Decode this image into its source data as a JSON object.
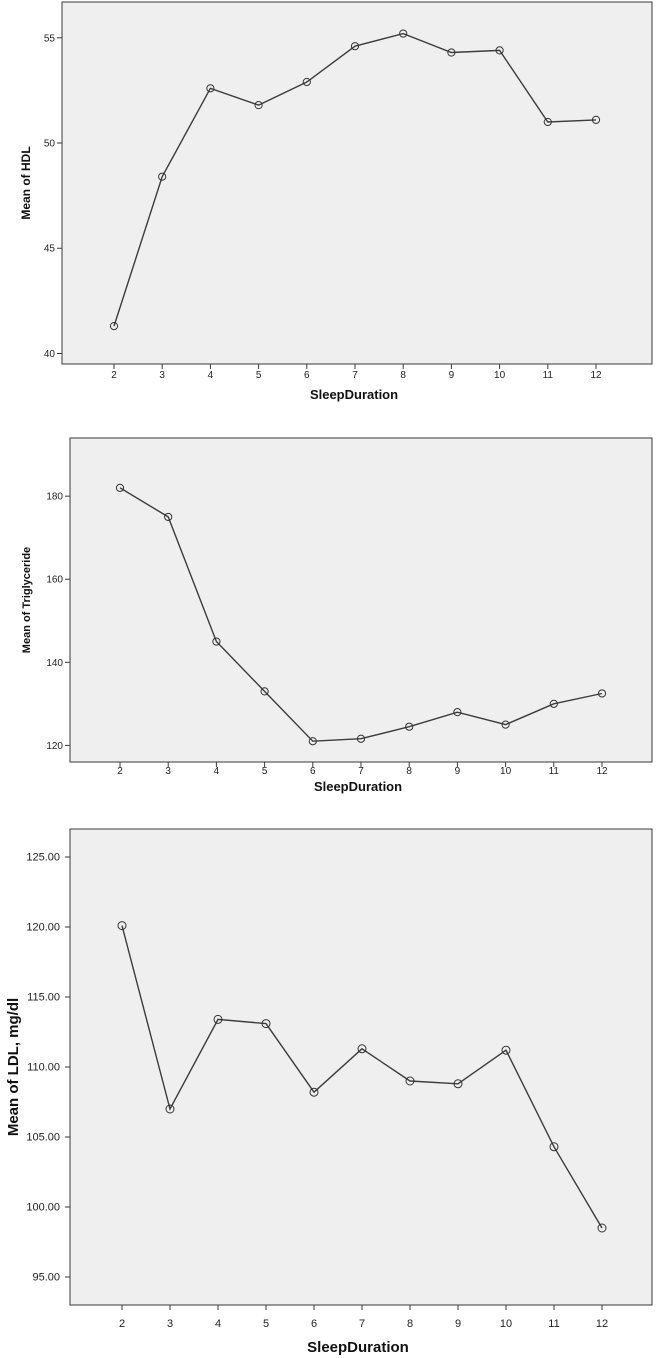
{
  "chart_data": [
    {
      "type": "line",
      "xlabel": "SleepDuration",
      "ylabel": "Mean of HDL",
      "x": [
        2,
        3,
        4,
        5,
        6,
        7,
        8,
        9,
        10,
        11,
        12
      ],
      "yticks": [
        "40",
        "45",
        "50",
        "55"
      ],
      "ylim": [
        39.5,
        56.7
      ],
      "series": [
        {
          "values": [
            41.3,
            48.4,
            52.6,
            51.8,
            52.9,
            54.6,
            55.2,
            54.3,
            54.4,
            51.0,
            51.1
          ]
        }
      ],
      "grid": false,
      "marker": "open-circle"
    },
    {
      "type": "line",
      "xlabel": "SleepDuration",
      "ylabel": "Mean of Triglyceride",
      "x": [
        2,
        3,
        4,
        5,
        6,
        7,
        8,
        9,
        10,
        11,
        12
      ],
      "yticks": [
        "120",
        "140",
        "160",
        "180"
      ],
      "ylim": [
        116,
        194
      ],
      "series": [
        {
          "values": [
            182,
            175,
            145,
            133,
            121,
            121.6,
            124.5,
            128,
            125,
            130,
            132.5
          ]
        }
      ],
      "grid": false,
      "marker": "open-circle"
    },
    {
      "type": "line",
      "xlabel": "SleepDuration",
      "ylabel": "Mean of LDL, mg/dl",
      "x": [
        2,
        3,
        4,
        5,
        6,
        7,
        8,
        9,
        10,
        11,
        12
      ],
      "yticks": [
        "95.00",
        "100.00",
        "105.00",
        "110.00",
        "115.00",
        "120.00",
        "125.00"
      ],
      "ylim": [
        93,
        127
      ],
      "series": [
        {
          "values": [
            120.1,
            107.0,
            113.4,
            113.1,
            108.2,
            111.3,
            109.0,
            108.8,
            111.2,
            104.3,
            98.5
          ]
        }
      ],
      "grid": false,
      "marker": "open-circle"
    }
  ]
}
